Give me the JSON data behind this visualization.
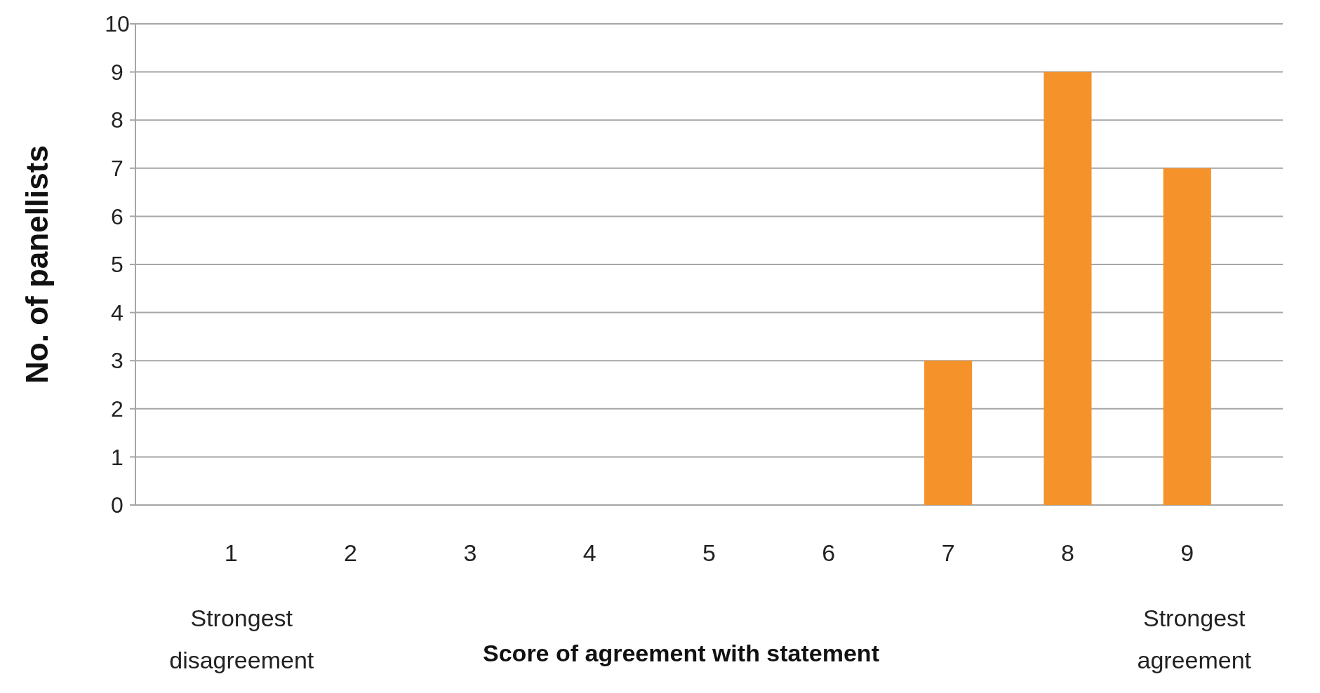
{
  "chart_data": {
    "type": "bar",
    "categories": [
      "1",
      "2",
      "3",
      "4",
      "5",
      "6",
      "7",
      "8",
      "9"
    ],
    "values": [
      0,
      0,
      0,
      0,
      0,
      0,
      3,
      9,
      7
    ],
    "color": "#f5922a",
    "ylim": [
      0,
      10
    ],
    "yticks": [
      0,
      1,
      2,
      3,
      4,
      5,
      6,
      7,
      8,
      9,
      10
    ],
    "grid": "y",
    "xlabel": "Score of agreement with statement",
    "ylabel": "No. of panellists",
    "annotations": [
      "Strongest disagreement",
      "Strongest agreement"
    ]
  }
}
